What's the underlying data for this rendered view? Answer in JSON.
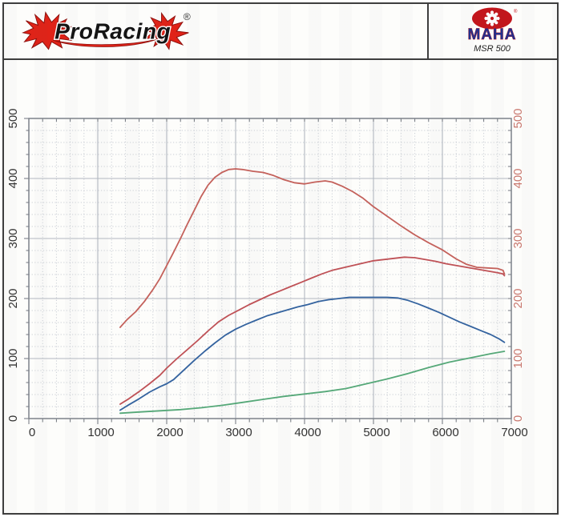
{
  "header": {
    "brand": "ProRacing",
    "registered": "®",
    "maha": {
      "name": "MAHA",
      "model": "MSR 500",
      "registered": "®"
    }
  },
  "colors": {
    "frame_border": "#3e3e3e",
    "plot_border": "#7d828a",
    "grid_major": "#b2b8c1",
    "grid_minor": "#c9cdd4",
    "tick": "#6f747c",
    "axis_text": "#333333",
    "right_axis_text": "#c9786f",
    "flame_red": "#e02318",
    "maha_red": "#c3161c",
    "maha_blue": "#242f8c"
  },
  "chart_data": {
    "type": "line",
    "title": "",
    "xlabel": "",
    "ylabel": "",
    "legend": "none",
    "grid": true,
    "x_axis": {
      "min": 0,
      "max": 7000,
      "major_step": 1000,
      "minor_step": 200,
      "tick_labels": [
        "0",
        "1000",
        "2000",
        "3000",
        "4000",
        "5000",
        "6000",
        "7000"
      ]
    },
    "y_axis_left": {
      "min": 0,
      "max": 500,
      "major_step": 100,
      "minor_step": 20,
      "tick_labels": [
        "0",
        "100",
        "200",
        "300",
        "400",
        "500"
      ],
      "color": "#333333"
    },
    "y_axis_right": {
      "min": 0,
      "max": 500,
      "major_step": 100,
      "tick_labels": [
        "0",
        "100",
        "200",
        "300",
        "400",
        "500"
      ],
      "color": "#c9786f"
    },
    "series": [
      {
        "name": "curve-red-upper",
        "color": "#c4615b",
        "points": [
          [
            1325,
            152
          ],
          [
            1425,
            165
          ],
          [
            1550,
            178
          ],
          [
            1675,
            195
          ],
          [
            1800,
            215
          ],
          [
            1900,
            233
          ],
          [
            2000,
            255
          ],
          [
            2100,
            277
          ],
          [
            2200,
            300
          ],
          [
            2300,
            324
          ],
          [
            2400,
            347
          ],
          [
            2500,
            370
          ],
          [
            2600,
            389
          ],
          [
            2700,
            402
          ],
          [
            2800,
            410
          ],
          [
            2900,
            415
          ],
          [
            3000,
            416
          ],
          [
            3100,
            415
          ],
          [
            3250,
            412
          ],
          [
            3400,
            410
          ],
          [
            3550,
            405
          ],
          [
            3700,
            398
          ],
          [
            3850,
            393
          ],
          [
            4000,
            391
          ],
          [
            4150,
            394
          ],
          [
            4300,
            396
          ],
          [
            4400,
            394
          ],
          [
            4550,
            387
          ],
          [
            4700,
            378
          ],
          [
            4850,
            367
          ],
          [
            5000,
            353
          ],
          [
            5200,
            337
          ],
          [
            5400,
            321
          ],
          [
            5600,
            306
          ],
          [
            5800,
            293
          ],
          [
            6000,
            281
          ],
          [
            6200,
            266
          ],
          [
            6350,
            257
          ],
          [
            6500,
            252
          ],
          [
            6650,
            251
          ],
          [
            6800,
            250
          ],
          [
            6880,
            247
          ],
          [
            6900,
            241
          ]
        ]
      },
      {
        "name": "curve-red-lower",
        "color": "#bf5156",
        "points": [
          [
            1325,
            24
          ],
          [
            1450,
            33
          ],
          [
            1600,
            45
          ],
          [
            1750,
            58
          ],
          [
            1900,
            72
          ],
          [
            2000,
            84
          ],
          [
            2150,
            100
          ],
          [
            2300,
            115
          ],
          [
            2450,
            130
          ],
          [
            2600,
            146
          ],
          [
            2750,
            161
          ],
          [
            2900,
            172
          ],
          [
            3050,
            181
          ],
          [
            3200,
            190
          ],
          [
            3350,
            198
          ],
          [
            3500,
            206
          ],
          [
            3650,
            213
          ],
          [
            3800,
            220
          ],
          [
            3950,
            227
          ],
          [
            4100,
            234
          ],
          [
            4250,
            241
          ],
          [
            4400,
            247
          ],
          [
            4550,
            251
          ],
          [
            4700,
            255
          ],
          [
            4850,
            259
          ],
          [
            5000,
            263
          ],
          [
            5150,
            265
          ],
          [
            5300,
            267
          ],
          [
            5450,
            269
          ],
          [
            5600,
            268
          ],
          [
            5750,
            265
          ],
          [
            5900,
            262
          ],
          [
            6050,
            258
          ],
          [
            6200,
            255
          ],
          [
            6350,
            252
          ],
          [
            6500,
            249
          ],
          [
            6650,
            246
          ],
          [
            6800,
            243
          ],
          [
            6880,
            241
          ],
          [
            6900,
            238
          ]
        ]
      },
      {
        "name": "curve-blue",
        "color": "#34639f",
        "points": [
          [
            1325,
            14
          ],
          [
            1450,
            23
          ],
          [
            1600,
            33
          ],
          [
            1750,
            44
          ],
          [
            1900,
            53
          ],
          [
            2000,
            58
          ],
          [
            2100,
            65
          ],
          [
            2250,
            81
          ],
          [
            2400,
            97
          ],
          [
            2550,
            112
          ],
          [
            2700,
            126
          ],
          [
            2850,
            139
          ],
          [
            3000,
            149
          ],
          [
            3150,
            157
          ],
          [
            3300,
            164
          ],
          [
            3450,
            171
          ],
          [
            3600,
            176
          ],
          [
            3750,
            181
          ],
          [
            3900,
            186
          ],
          [
            4050,
            190
          ],
          [
            4200,
            195
          ],
          [
            4350,
            198
          ],
          [
            4500,
            200
          ],
          [
            4650,
            202
          ],
          [
            4800,
            202
          ],
          [
            5000,
            202
          ],
          [
            5200,
            202
          ],
          [
            5350,
            201
          ],
          [
            5500,
            197
          ],
          [
            5650,
            191
          ],
          [
            5800,
            184
          ],
          [
            5950,
            177
          ],
          [
            6100,
            169
          ],
          [
            6250,
            161
          ],
          [
            6400,
            154
          ],
          [
            6550,
            147
          ],
          [
            6700,
            140
          ],
          [
            6820,
            133
          ],
          [
            6900,
            127
          ]
        ]
      },
      {
        "name": "curve-green",
        "color": "#55a878",
        "points": [
          [
            1325,
            9
          ],
          [
            1600,
            11
          ],
          [
            1900,
            13
          ],
          [
            2200,
            15
          ],
          [
            2500,
            18
          ],
          [
            2800,
            22
          ],
          [
            3100,
            27
          ],
          [
            3400,
            32
          ],
          [
            3700,
            37
          ],
          [
            4000,
            41
          ],
          [
            4300,
            45
          ],
          [
            4600,
            50
          ],
          [
            4900,
            58
          ],
          [
            5200,
            66
          ],
          [
            5500,
            75
          ],
          [
            5800,
            85
          ],
          [
            6100,
            94
          ],
          [
            6400,
            101
          ],
          [
            6700,
            108
          ],
          [
            6900,
            112
          ]
        ]
      }
    ]
  }
}
